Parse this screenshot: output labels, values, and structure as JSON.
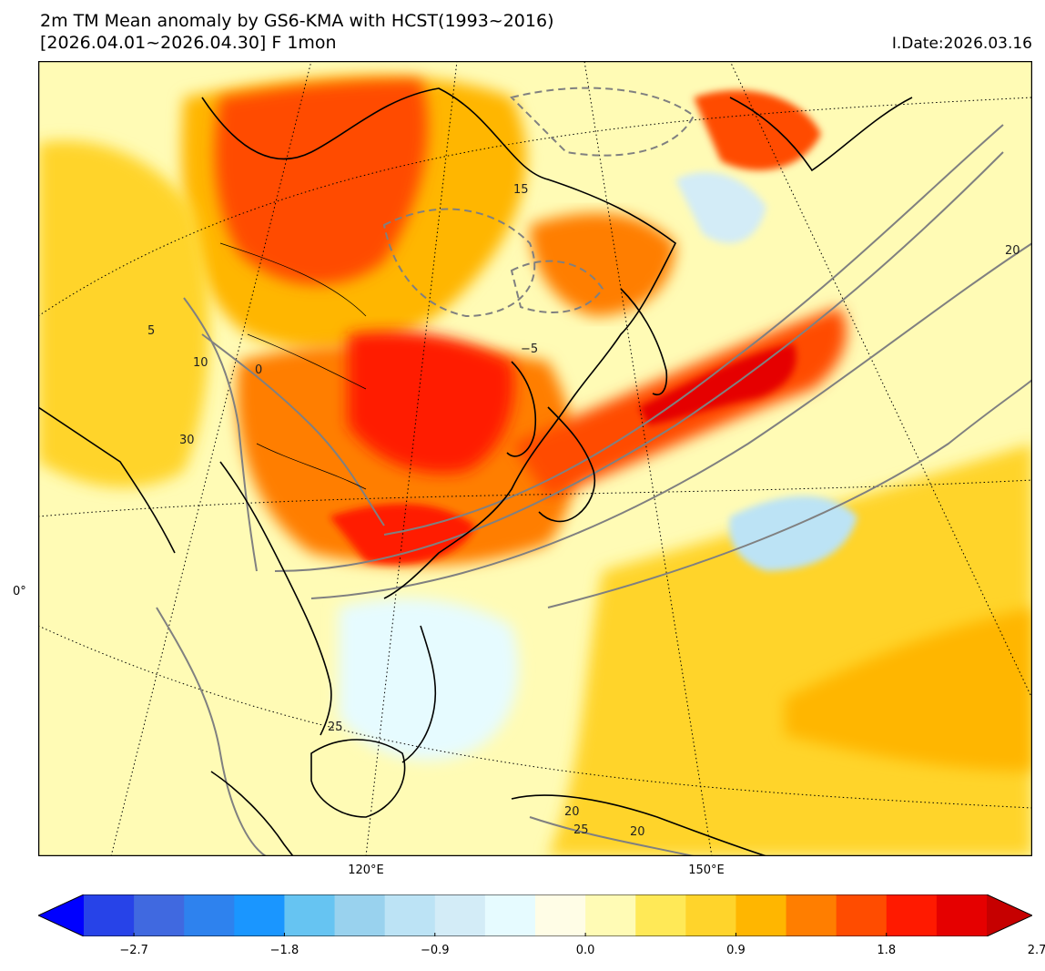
{
  "title": {
    "line1": "2m TM Mean anomaly by GS6-KMA with HCST(1993~2016)",
    "line2": "[2026.04.01~2026.04.30] F 1mon",
    "init_date": "I.Date:2026.03.16"
  },
  "axes": {
    "lon_labels": [
      "120°E",
      "150°E"
    ],
    "lat_labels": [
      "0°"
    ]
  },
  "colorbar": {
    "colors": [
      "#0000ff",
      "#2743e8",
      "#4069e0",
      "#2e82ee",
      "#1a96ff",
      "#66c4f2",
      "#99d2ee",
      "#bce3f5",
      "#d3ecf7",
      "#e6fbff",
      "#fffde6",
      "#fffbb5",
      "#ffe957",
      "#ffd42b",
      "#ffb600",
      "#ff7e00",
      "#ff4c00",
      "#ff1a00",
      "#e50000",
      "#c60000"
    ],
    "tick_labels": [
      "−2.7",
      "−1.8",
      "−0.9",
      "0.0",
      "0.9",
      "1.8",
      "2.7"
    ]
  },
  "map": {
    "contour_labels": [
      "20",
      "15",
      "10",
      "5",
      "0",
      "−5",
      "30",
      "25",
      "20",
      "25",
      "20"
    ],
    "colors": {
      "ocean_base": "#fffbb5",
      "strong_warm": "#e50000",
      "warm": "#ff7e00",
      "mild_warm": "#ffd42b",
      "cool": "#bce3f5",
      "neutral_cool": "#e6fbff",
      "contour": "#808080",
      "coast": "#000000"
    }
  }
}
